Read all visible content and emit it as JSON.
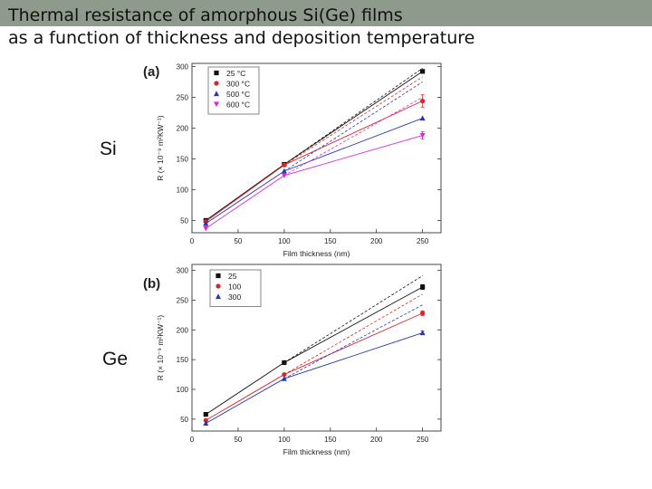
{
  "slide": {
    "title_line1": "Thermal resistance of amorphous Si(Ge) films",
    "title_line2": "as a function of thickness and deposition temperature",
    "label_si": "Si",
    "label_ge": "Ge"
  },
  "chart_data": [
    {
      "type": "scatter",
      "panel_label": "(a)",
      "xlabel": "Film thickness (nm)",
      "ylabel": "R (× 10⁻⁹ m²KW⁻¹)",
      "xlim": [
        0,
        270
      ],
      "ylim": [
        30,
        305
      ],
      "xticks": [
        0,
        50,
        100,
        150,
        200,
        250
      ],
      "yticks": [
        50,
        100,
        150,
        200,
        250,
        300
      ],
      "legend_position": "top-left",
      "grid": false,
      "series": [
        {
          "name": "25 °C",
          "color": "#111111",
          "marker": "square",
          "x": [
            15,
            100,
            250
          ],
          "y": [
            50,
            141,
            292
          ],
          "fit_end": 297,
          "errors": [
            0,
            0,
            0
          ]
        },
        {
          "name": "300 °C",
          "color": "#d62728",
          "marker": "circle",
          "x": [
            15,
            100,
            250
          ],
          "y": [
            48,
            140,
            244
          ],
          "fit_end": 283,
          "errors": [
            0,
            0,
            10
          ]
        },
        {
          "name": "500 °C",
          "color": "#2b35b0",
          "marker": "triangle-up",
          "x": [
            15,
            100,
            250
          ],
          "y": [
            45,
            130,
            216
          ],
          "fit_end": 275,
          "errors": [
            0,
            0,
            0
          ]
        },
        {
          "name": "600 °C",
          "color": "#d62ad8",
          "marker": "triangle-down",
          "x": [
            15,
            100,
            250
          ],
          "y": [
            37,
            123,
            188
          ],
          "fit_end": 250,
          "errors": [
            0,
            0,
            6
          ]
        }
      ]
    },
    {
      "type": "scatter",
      "panel_label": "(b)",
      "xlabel": "Film thickness (nm)",
      "ylabel": "R (× 10⁻⁹ m²KW⁻¹)",
      "xlim": [
        0,
        270
      ],
      "ylim": [
        30,
        310
      ],
      "xticks": [
        0,
        50,
        100,
        150,
        200,
        250
      ],
      "yticks": [
        50,
        100,
        150,
        200,
        250,
        300
      ],
      "legend_position": "top-left",
      "grid": false,
      "series": [
        {
          "name": "25",
          "color": "#111111",
          "marker": "square",
          "x": [
            15,
            100,
            250
          ],
          "y": [
            58,
            145,
            272
          ],
          "fit_end": 291,
          "errors": [
            0,
            0,
            4
          ]
        },
        {
          "name": "100",
          "color": "#d62728",
          "marker": "circle",
          "x": [
            15,
            100,
            250
          ],
          "y": [
            48,
            125,
            228
          ],
          "fit_end": 260,
          "errors": [
            0,
            0,
            4
          ]
        },
        {
          "name": "300",
          "color": "#2b35b0",
          "marker": "triangle-up",
          "x": [
            15,
            100,
            250
          ],
          "y": [
            43,
            118,
            195
          ],
          "fit_end": 242,
          "errors": [
            0,
            0,
            3
          ]
        }
      ]
    }
  ]
}
